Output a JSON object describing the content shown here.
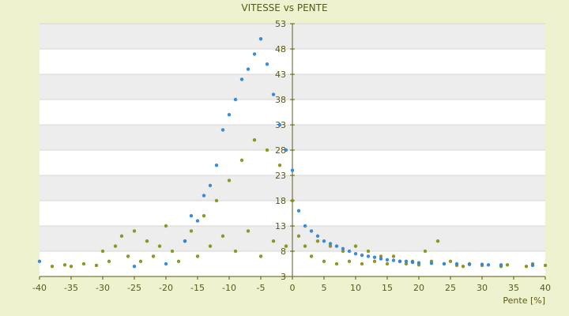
{
  "chart_data": {
    "type": "scatter",
    "title": "VITESSE vs PENTE",
    "xlabel": "Pente [%]",
    "ylabel": "",
    "xlim": [
      -40,
      40
    ],
    "ylim": [
      3,
      53
    ],
    "xticks": [
      "-40",
      "-35",
      "-30",
      "-25",
      "-20",
      "-15",
      "-10",
      "-5",
      "0",
      "5",
      "10",
      "15",
      "20",
      "25",
      "30",
      "35",
      "40"
    ],
    "yticks": [
      "53",
      "48",
      "43",
      "38",
      "33",
      "28",
      "23",
      "18",
      "13",
      "8",
      "3"
    ],
    "grid": true,
    "legend": "none",
    "colors": {
      "background": "#eef2cf",
      "plot_band_light": "#ffffff",
      "plot_band_dark": "#ededed",
      "axis": "#5a5a16",
      "series_a": "#2f86d6",
      "series_b": "#8b8f18"
    },
    "series": [
      {
        "color": "#8b8f18",
        "values": [
          [
            -38,
            5
          ],
          [
            -36,
            5.3
          ],
          [
            -35,
            5
          ],
          [
            -33,
            5.5
          ],
          [
            -31,
            5.2
          ],
          [
            -30,
            8
          ],
          [
            -29,
            6
          ],
          [
            -28,
            9
          ],
          [
            -27,
            11
          ],
          [
            -26,
            7
          ],
          [
            -25,
            12
          ],
          [
            -24,
            6
          ],
          [
            -23,
            10
          ],
          [
            -22,
            7
          ],
          [
            -21,
            9
          ],
          [
            -20,
            13
          ],
          [
            -19,
            8
          ],
          [
            -18,
            6
          ],
          [
            -17,
            10
          ],
          [
            -16,
            12
          ],
          [
            -15,
            7
          ],
          [
            -14,
            15
          ],
          [
            -13,
            9
          ],
          [
            -12,
            18
          ],
          [
            -11,
            11
          ],
          [
            -10,
            22
          ],
          [
            -9,
            8
          ],
          [
            -8,
            26
          ],
          [
            -7,
            12
          ],
          [
            -6,
            30
          ],
          [
            -5,
            7
          ],
          [
            -4,
            28
          ],
          [
            -3,
            10
          ],
          [
            -2,
            25
          ],
          [
            -1,
            9
          ],
          [
            0,
            18
          ],
          [
            1,
            11
          ],
          [
            2,
            9
          ],
          [
            3,
            7
          ],
          [
            4,
            10
          ],
          [
            5,
            6
          ],
          [
            6,
            9
          ],
          [
            7,
            5.5
          ],
          [
            8,
            8
          ],
          [
            9,
            6
          ],
          [
            10,
            9
          ],
          [
            11,
            5.5
          ],
          [
            12,
            8
          ],
          [
            13,
            6
          ],
          [
            14,
            7
          ],
          [
            15,
            5.5
          ],
          [
            16,
            7
          ],
          [
            17,
            6
          ],
          [
            18,
            5.5
          ],
          [
            19,
            6
          ],
          [
            20,
            5.3
          ],
          [
            21,
            8
          ],
          [
            22,
            6
          ],
          [
            23,
            10
          ],
          [
            24,
            5.5
          ],
          [
            25,
            6
          ],
          [
            26,
            5.2
          ],
          [
            27,
            5
          ],
          [
            28,
            5.5
          ],
          [
            30,
            5.2
          ],
          [
            33,
            5
          ],
          [
            34,
            5.3
          ],
          [
            37,
            5
          ],
          [
            38,
            5.5
          ],
          [
            40,
            5.2
          ]
        ]
      },
      {
        "color": "#2f86d6",
        "values": [
          [
            -40,
            6
          ],
          [
            -25,
            5
          ],
          [
            -20,
            5.5
          ],
          [
            -17,
            10
          ],
          [
            -16,
            15
          ],
          [
            -15,
            14
          ],
          [
            -14,
            19
          ],
          [
            -13,
            21
          ],
          [
            -12,
            25
          ],
          [
            -11,
            32
          ],
          [
            -10,
            35
          ],
          [
            -9,
            38
          ],
          [
            -8,
            42
          ],
          [
            -7,
            44
          ],
          [
            -6,
            47
          ],
          [
            -5,
            50
          ],
          [
            -4,
            45
          ],
          [
            -3,
            39
          ],
          [
            -2,
            33
          ],
          [
            -1,
            28
          ],
          [
            0,
            24
          ],
          [
            1,
            16
          ],
          [
            2,
            13
          ],
          [
            3,
            12
          ],
          [
            4,
            11
          ],
          [
            5,
            10
          ],
          [
            6,
            9.5
          ],
          [
            7,
            9
          ],
          [
            8,
            8.5
          ],
          [
            9,
            8
          ],
          [
            10,
            7.5
          ],
          [
            11,
            7.2
          ],
          [
            12,
            7
          ],
          [
            13,
            6.8
          ],
          [
            14,
            6.5
          ],
          [
            15,
            6.3
          ],
          [
            16,
            6.2
          ],
          [
            17,
            6
          ],
          [
            18,
            6
          ],
          [
            19,
            5.8
          ],
          [
            20,
            5.7
          ],
          [
            22,
            5.6
          ],
          [
            24,
            5.5
          ],
          [
            26,
            5.5
          ],
          [
            28,
            5.4
          ],
          [
            30,
            5.4
          ],
          [
            31,
            5.3
          ],
          [
            33,
            5.3
          ],
          [
            38,
            5.2
          ]
        ]
      }
    ]
  }
}
